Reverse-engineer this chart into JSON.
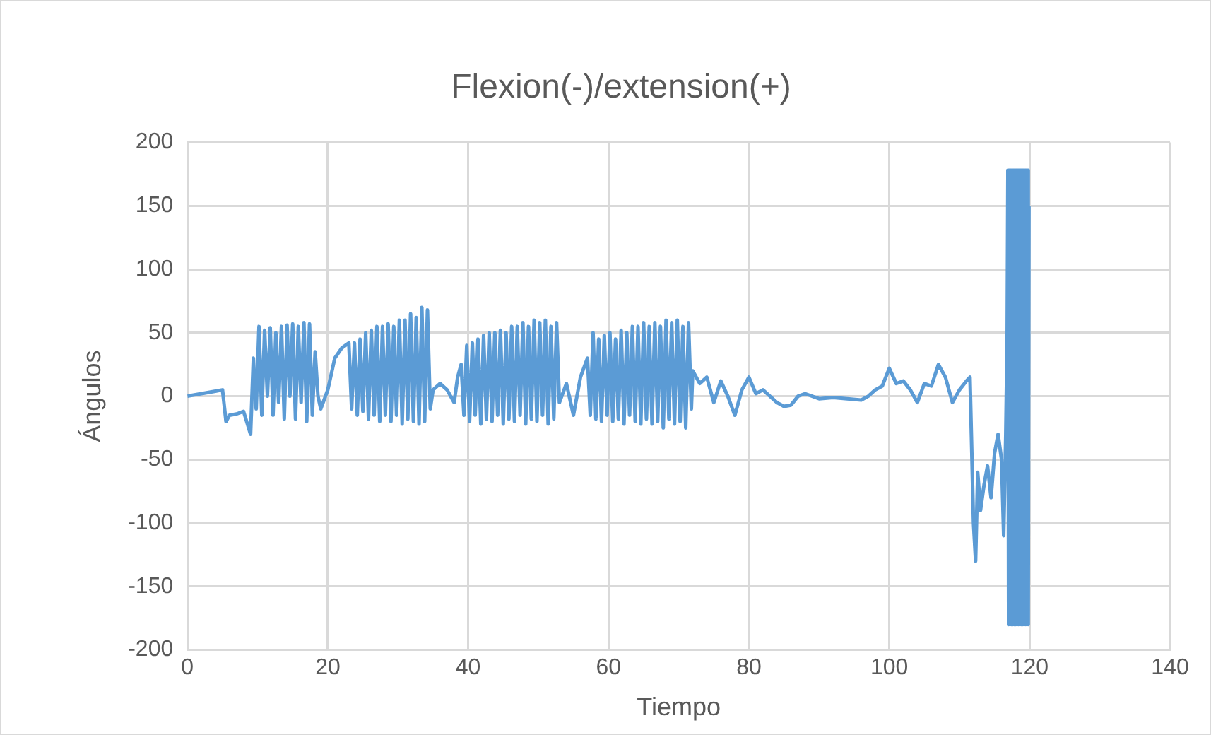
{
  "chart_data": {
    "type": "line",
    "title": "Flexion(-)/extension(+)",
    "xlabel": "Tiempo",
    "ylabel": "Ángulos",
    "xlim": [
      0,
      140
    ],
    "xticks": [
      0,
      20,
      40,
      60,
      80,
      100,
      120,
      140
    ],
    "ylim": [
      -200,
      200
    ],
    "yticks": [
      -200,
      -150,
      -100,
      -50,
      0,
      50,
      100,
      150,
      200
    ],
    "grid": true,
    "legend": false,
    "marker": "none",
    "line_style": "solid",
    "series": [
      {
        "color": "#5b9bd5",
        "x": [
          0,
          1,
          2,
          3,
          4,
          5,
          5.5,
          6,
          7,
          8,
          9,
          9.4,
          9.8,
          10.2,
          10.6,
          11,
          11.4,
          11.8,
          12.2,
          12.6,
          13,
          13.4,
          13.8,
          14.2,
          14.6,
          15,
          15.4,
          15.8,
          16.2,
          16.6,
          17,
          17.4,
          17.8,
          18.2,
          18.6,
          19,
          20,
          21,
          22,
          23,
          23.4,
          23.8,
          24.2,
          24.6,
          25,
          25.4,
          25.8,
          26.2,
          26.6,
          27,
          27.4,
          27.8,
          28.2,
          28.6,
          29,
          29.4,
          29.8,
          30.2,
          30.6,
          31,
          31.4,
          31.8,
          32.2,
          32.6,
          33,
          33.4,
          33.8,
          34.2,
          34.6,
          35,
          36,
          37,
          38,
          38.5,
          39,
          39.4,
          39.8,
          40.2,
          40.6,
          41,
          41.4,
          41.8,
          42.2,
          42.6,
          43,
          43.4,
          43.8,
          44.2,
          44.6,
          45,
          45.4,
          45.8,
          46.2,
          46.6,
          47,
          47.4,
          47.8,
          48.2,
          48.6,
          49,
          49.4,
          49.8,
          50.2,
          50.6,
          51,
          51.4,
          51.8,
          52.2,
          52.6,
          53,
          54,
          55,
          56,
          57,
          57.4,
          57.8,
          58.2,
          58.6,
          59,
          59.4,
          59.8,
          60.2,
          60.6,
          61,
          61.4,
          61.8,
          62.2,
          62.6,
          63,
          63.4,
          63.8,
          64.2,
          64.6,
          65,
          65.4,
          65.8,
          66.2,
          66.6,
          67,
          67.4,
          67.8,
          68.2,
          68.6,
          69,
          69.4,
          69.8,
          70.2,
          70.6,
          71,
          71.4,
          71.8,
          72,
          73,
          74,
          75,
          76,
          77,
          78,
          79,
          80,
          81,
          82,
          84,
          85,
          86,
          87,
          88,
          90,
          92,
          94,
          96,
          97,
          98,
          99,
          100,
          101,
          102,
          103,
          104,
          105,
          106,
          107,
          108,
          109,
          110,
          111,
          111.5,
          112,
          112.3,
          112.6,
          113,
          113.5,
          114,
          114.5,
          115,
          115.5,
          116,
          116.3,
          116.6,
          116.8,
          116.9,
          117,
          117.1,
          117.2,
          117.3,
          117.4,
          117.5,
          117.6,
          117.7,
          117.8,
          117.9,
          118,
          118.1,
          118.2,
          118.3,
          118.4,
          118.5,
          118.6,
          118.7,
          118.8,
          118.9,
          119,
          119.1,
          119.2,
          119.3,
          119.4,
          119.5,
          119.6,
          119.7,
          119.8,
          119.9
        ],
        "values": [
          0,
          1,
          2,
          3,
          4,
          5,
          -20,
          -15,
          -14,
          -12,
          -30,
          30,
          -10,
          55,
          -15,
          52,
          0,
          54,
          -15,
          50,
          -5,
          55,
          -18,
          56,
          0,
          57,
          -18,
          55,
          -5,
          58,
          -20,
          57,
          -15,
          35,
          0,
          -10,
          5,
          30,
          38,
          42,
          -10,
          42,
          -15,
          45,
          -12,
          50,
          -18,
          52,
          -15,
          55,
          -20,
          55,
          -15,
          57,
          -20,
          55,
          -15,
          60,
          -22,
          60,
          -18,
          65,
          -20,
          62,
          -22,
          70,
          -20,
          68,
          -10,
          5,
          10,
          5,
          -5,
          15,
          25,
          -15,
          40,
          -20,
          42,
          -15,
          45,
          -22,
          48,
          -18,
          50,
          -20,
          50,
          -15,
          52,
          -22,
          50,
          -18,
          55,
          -20,
          55,
          -15,
          58,
          -22,
          55,
          -18,
          60,
          -20,
          58,
          -15,
          60,
          -22,
          55,
          -18,
          58,
          -5,
          10,
          -15,
          15,
          30,
          -15,
          50,
          -18,
          45,
          -20,
          48,
          -15,
          50,
          -20,
          45,
          -18,
          52,
          -22,
          50,
          -15,
          55,
          -20,
          55,
          -22,
          58,
          -18,
          55,
          -22,
          58,
          -20,
          55,
          -25,
          60,
          -18,
          58,
          -22,
          60,
          -20,
          55,
          -25,
          58,
          -10,
          20,
          10,
          15,
          -5,
          12,
          0,
          -15,
          5,
          15,
          2,
          5,
          -5,
          -8,
          -7,
          0,
          2,
          -2,
          -1,
          -2,
          -3,
          0,
          5,
          8,
          22,
          10,
          12,
          5,
          -5,
          10,
          8,
          25,
          15,
          -5,
          5,
          12,
          15,
          -100,
          -130,
          -60,
          -90,
          -70,
          -55,
          -80,
          -45,
          -30,
          -50,
          -110,
          -30,
          50,
          178,
          -180,
          178,
          -180,
          178,
          -180,
          178,
          -180,
          178,
          -180,
          178,
          -180,
          178,
          -180,
          178,
          -180,
          178,
          -180,
          178,
          -180,
          178,
          -180,
          178,
          -180,
          178,
          -180,
          178,
          -180,
          178,
          -180,
          150
        ]
      }
    ]
  }
}
